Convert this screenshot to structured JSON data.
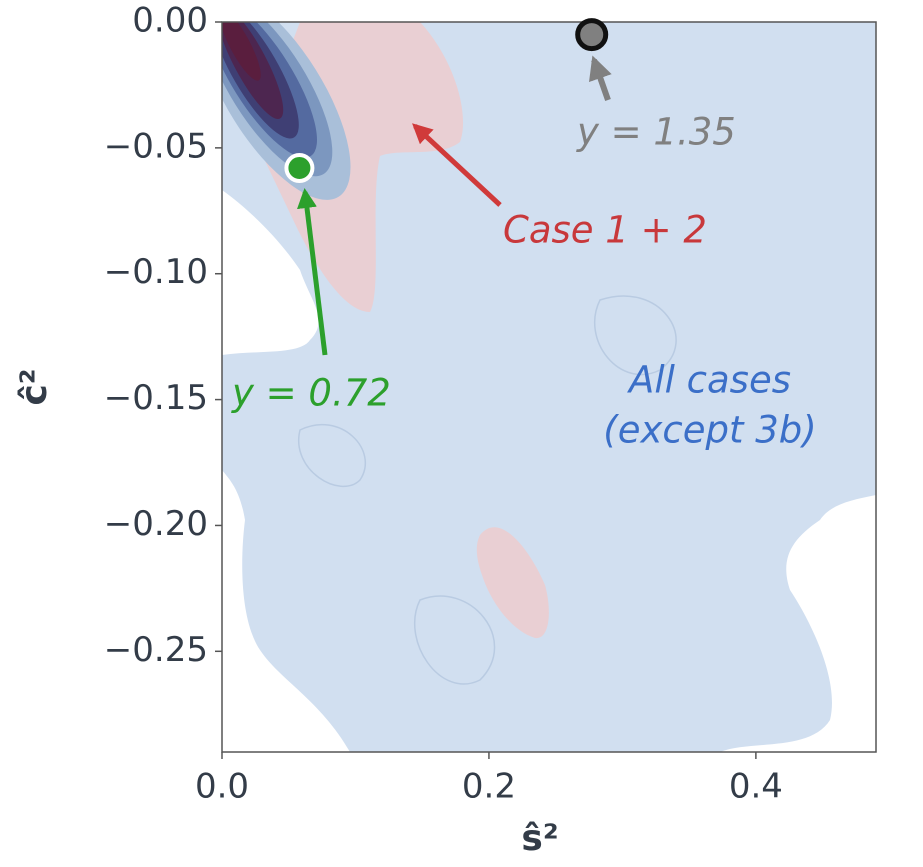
{
  "chart_data": {
    "type": "density",
    "x_label": "ŝ²",
    "y_label": "ĉ²",
    "xlim": [
      0,
      0.49
    ],
    "ylim": [
      -0.29,
      0
    ],
    "xticks": [
      {
        "value": 0,
        "label": "0.0"
      },
      0.2,
      0.4
    ],
    "yticks": [
      {
        "value": 0,
        "label": "0.00"
      },
      {
        "value": -0.05,
        "label": "−0.05"
      },
      {
        "value": -0.1,
        "label": "−0.10"
      },
      {
        "value": -0.15,
        "label": "−0.15"
      },
      {
        "value": -0.2,
        "label": "−0.20"
      },
      {
        "value": -0.25,
        "label": "−0.25"
      }
    ],
    "regions": [
      {
        "label": [
          "All cases",
          "(except 3b)"
        ],
        "color": "#d1dff0",
        "label_color": "#3b6fc8"
      },
      {
        "label": [
          "Case 1 + 2"
        ],
        "color": "#e9cfd3",
        "label_color": "#c8383b"
      }
    ],
    "points": [
      {
        "label": "y = 1.35",
        "x": 0.277,
        "y": -0.005,
        "color": "#808080"
      },
      {
        "label": "y = 0.72",
        "x": 0.058,
        "y": -0.058,
        "color": "#2ca02c"
      }
    ]
  }
}
